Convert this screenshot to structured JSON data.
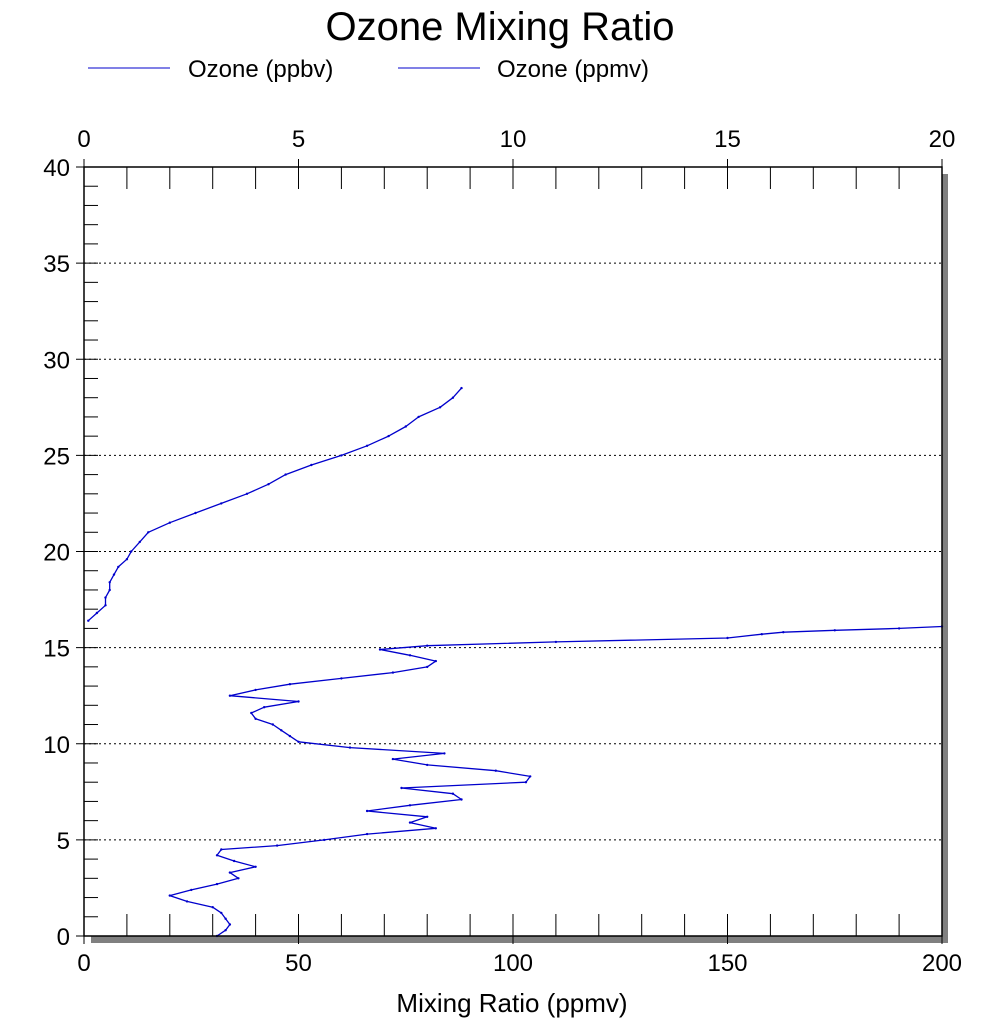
{
  "chart_data": {
    "type": "line",
    "title": "Ozone Mixing Ratio",
    "xlabel": "Mixing Ratio (ppmv)",
    "ylabel": "",
    "xlim_bottom": [
      0,
      200
    ],
    "xlim_top": [
      0,
      20
    ],
    "ylim": [
      0,
      40
    ],
    "x_ticks_bottom": [
      "0",
      "50",
      "100",
      "150",
      "200"
    ],
    "x_ticks_top": [
      "0",
      "5",
      "10",
      "15",
      "20"
    ],
    "y_ticks": [
      "0",
      "5",
      "10",
      "15",
      "20",
      "25",
      "30",
      "35",
      "40"
    ],
    "grid": "horizontal dotted",
    "legend_position": "top-left",
    "legend": [
      "Ozone (ppbv)",
      "Ozone (ppmv)"
    ],
    "series": [
      {
        "name": "Ozone (ppbv)",
        "axis": "bottom",
        "color": "#0000cc",
        "y": [
          0.0,
          0.3,
          0.6,
          0.9,
          1.2,
          1.5,
          1.8,
          2.1,
          2.4,
          2.7,
          3.0,
          3.3,
          3.6,
          3.9,
          4.2,
          4.5,
          4.7,
          5.0,
          5.3,
          5.6,
          5.9,
          6.2,
          6.5,
          6.8,
          7.1,
          7.4,
          7.7,
          8.0,
          8.3,
          8.6,
          8.9,
          9.2,
          9.5,
          9.8,
          10.1,
          10.4,
          10.7,
          11.0,
          11.3,
          11.6,
          11.9,
          12.2,
          12.5,
          12.8,
          13.1,
          13.4,
          13.7,
          14.0,
          14.3,
          14.6,
          14.9,
          15.1,
          15.3,
          15.5,
          15.7,
          15.8,
          15.9,
          16.0,
          16.1
        ],
        "x": [
          31,
          33,
          34,
          33,
          32,
          30,
          24,
          20,
          25,
          31,
          36,
          34,
          40,
          35,
          31,
          32,
          45,
          56,
          66,
          82,
          76,
          80,
          66,
          76,
          88,
          86,
          74,
          103,
          104,
          96,
          80,
          72,
          84,
          62,
          50,
          48,
          46,
          44,
          40,
          39,
          42,
          50,
          34,
          40,
          48,
          60,
          72,
          80,
          82,
          76,
          69,
          80,
          110,
          150,
          158,
          163,
          175,
          190,
          200
        ]
      },
      {
        "name": "Ozone (ppmv)",
        "axis": "top",
        "color": "#0000cc",
        "y": [
          16.4,
          16.8,
          17.2,
          17.6,
          18.0,
          18.4,
          18.8,
          19.2,
          19.6,
          20.0,
          20.5,
          21.0,
          21.5,
          22.0,
          22.5,
          23.0,
          23.5,
          24.0,
          24.5,
          25.0,
          25.5,
          26.0,
          26.5,
          27.0,
          27.5,
          28.0,
          28.5
        ],
        "x": [
          0.1,
          0.3,
          0.5,
          0.5,
          0.6,
          0.6,
          0.7,
          0.8,
          1.0,
          1.1,
          1.3,
          1.5,
          2.0,
          2.6,
          3.2,
          3.8,
          4.3,
          4.7,
          5.3,
          6.0,
          6.6,
          7.1,
          7.5,
          7.8,
          8.3,
          8.6,
          8.8
        ]
      }
    ]
  }
}
